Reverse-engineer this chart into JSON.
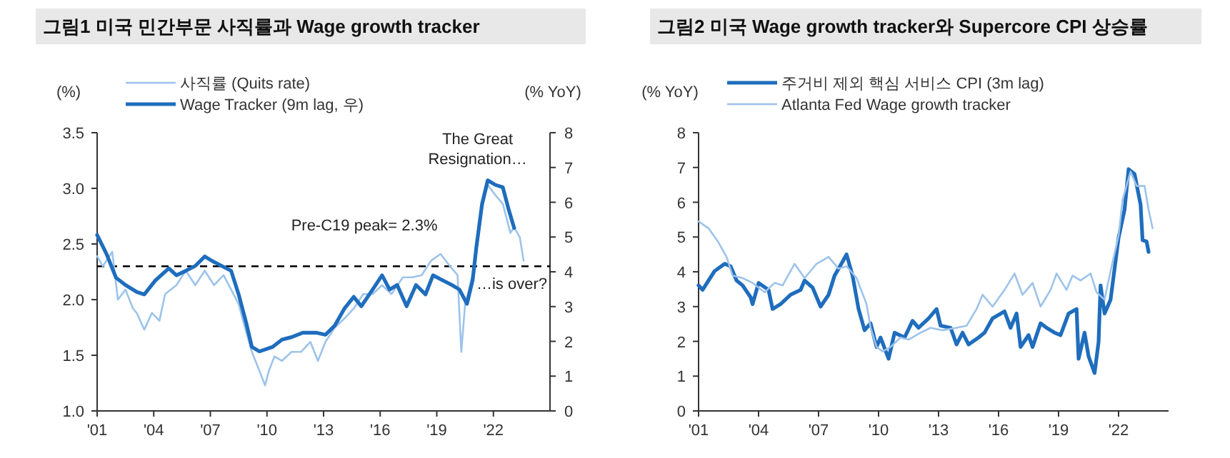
{
  "chart_data": [
    {
      "type": "line",
      "title": "그림1 미국 민간부문 사직률과 Wage growth tracker",
      "ylabel": "(%)",
      "y2label": "(% YoY)",
      "xlim": [
        2001,
        2025
      ],
      "xticks": [
        {
          "value": 2001,
          "label": "'01"
        },
        {
          "value": 2004,
          "label": "'04"
        },
        {
          "value": 2007,
          "label": "'07"
        },
        {
          "value": 2010,
          "label": "'10"
        },
        {
          "value": 2013,
          "label": "'13"
        },
        {
          "value": 2016,
          "label": "'16"
        },
        {
          "value": 2019,
          "label": "'19"
        },
        {
          "value": 2022,
          "label": "'22"
        }
      ],
      "ylim": [
        1,
        3.5
      ],
      "yticks": [
        {
          "value": 1,
          "label": "1.0"
        },
        {
          "value": 1.5,
          "label": "1.5"
        },
        {
          "value": 2,
          "label": "2.0"
        },
        {
          "value": 2.5,
          "label": "2.5"
        },
        {
          "value": 3,
          "label": "3.0"
        },
        {
          "value": 3.5,
          "label": "3.5"
        }
      ],
      "y2lim": [
        0,
        8
      ],
      "y2ticks": [
        0,
        1,
        2,
        3,
        4,
        5,
        6,
        7,
        8
      ],
      "grid": false,
      "legend": "top",
      "line_style": "solid",
      "marker": "none",
      "series": [
        {
          "name": "사직률 (Quits rate)",
          "color": "#9dc3ea",
          "x": [
            2001.0,
            2001.3,
            2001.8,
            2002.1,
            2002.5,
            2002.9,
            2003.1,
            2003.5,
            2003.9,
            2004.3,
            2004.6,
            2005.2,
            2005.7,
            2006.2,
            2006.7,
            2007.2,
            2007.7,
            2008.1,
            2008.5,
            2008.7,
            2009.2,
            2009.6,
            2009.9,
            2010.1,
            2010.4,
            2010.8,
            2011.3,
            2011.8,
            2012.3,
            2012.7,
            2013.1,
            2013.6,
            2014.1,
            2014.6,
            2015.1,
            2015.6,
            2016.1,
            2016.6,
            2017.2,
            2017.7,
            2018.2,
            2018.7,
            2019.2,
            2019.7,
            2020.1,
            2020.3,
            2020.5,
            2020.7,
            2021.0,
            2021.4,
            2021.7,
            2022.1,
            2022.5,
            2022.9,
            2023.1,
            2023.4,
            2023.6
          ],
          "values": [
            2.39,
            2.3,
            2.43,
            2.0,
            2.09,
            1.92,
            1.88,
            1.73,
            1.88,
            1.81,
            2.05,
            2.13,
            2.26,
            2.13,
            2.26,
            2.13,
            2.22,
            2.09,
            1.96,
            1.83,
            1.53,
            1.36,
            1.23,
            1.36,
            1.49,
            1.45,
            1.53,
            1.53,
            1.62,
            1.45,
            1.62,
            1.75,
            1.83,
            1.92,
            2.05,
            2.05,
            2.13,
            2.05,
            2.2,
            2.2,
            2.22,
            2.35,
            2.41,
            2.3,
            2.22,
            1.53,
            1.96,
            2.09,
            2.3,
            2.82,
            3.03,
            2.94,
            2.86,
            2.6,
            2.65,
            2.56,
            2.35
          ]
        },
        {
          "name": "Wage Tracker (9m lag, 우)",
          "color": "#1f6dbd",
          "axis": "y2",
          "x": [
            2001.0,
            2001.5,
            2002.0,
            2002.5,
            2003.1,
            2003.5,
            2004.1,
            2004.8,
            2005.2,
            2005.7,
            2006.2,
            2006.7,
            2007.1,
            2007.6,
            2008.1,
            2008.5,
            2008.9,
            2009.2,
            2009.6,
            2010.3,
            2010.8,
            2011.3,
            2011.9,
            2012.6,
            2013.1,
            2013.6,
            2014.1,
            2014.6,
            2015.0,
            2015.6,
            2016.1,
            2016.5,
            2016.9,
            2017.4,
            2017.9,
            2018.4,
            2018.8,
            2019.3,
            2019.8,
            2020.2,
            2020.6,
            2020.9,
            2021.1,
            2021.4,
            2021.7,
            2022.1,
            2022.5,
            2022.8,
            2023.1
          ],
          "values": [
            5.06,
            4.51,
            3.83,
            3.62,
            3.42,
            3.35,
            3.76,
            4.1,
            3.9,
            4.03,
            4.17,
            4.44,
            4.31,
            4.17,
            4.03,
            3.35,
            2.53,
            1.84,
            1.71,
            1.84,
            2.05,
            2.12,
            2.25,
            2.25,
            2.19,
            2.46,
            2.94,
            3.28,
            3.01,
            3.49,
            3.9,
            3.49,
            3.62,
            3.01,
            3.62,
            3.35,
            3.9,
            3.76,
            3.62,
            3.49,
            3.08,
            3.76,
            4.72,
            5.95,
            6.63,
            6.5,
            6.43,
            5.81,
            5.26
          ]
        }
      ],
      "ref_lines": [
        {
          "axis": "y",
          "value": 2.3,
          "label": "Pre-C19 peak= 2.3%",
          "color": "#000000",
          "line_style": "dashed"
        }
      ],
      "annotations": [
        "The Great Resignation…",
        "…is over?"
      ]
    },
    {
      "type": "line",
      "title": "그림2 미국 Wage growth tracker와 Supercore CPI 상승률",
      "ylabel": "(% YoY)",
      "xlim": [
        2001,
        2024.5
      ],
      "xticks": [
        {
          "value": 2001,
          "label": "'01"
        },
        {
          "value": 2004,
          "label": "'04"
        },
        {
          "value": 2007,
          "label": "'07"
        },
        {
          "value": 2010,
          "label": "'10"
        },
        {
          "value": 2013,
          "label": "'13"
        },
        {
          "value": 2016,
          "label": "'16"
        },
        {
          "value": 2019,
          "label": "'19"
        },
        {
          "value": 2022,
          "label": "'22"
        }
      ],
      "ylim": [
        0,
        8
      ],
      "yticks": [
        0,
        1,
        2,
        3,
        4,
        5,
        6,
        7,
        8
      ],
      "grid": false,
      "legend": "top",
      "line_style": "solid",
      "marker": "none",
      "series": [
        {
          "name": "주거비 제외 핵심 서비스 CPI (3m lag)",
          "color": "#1f6dbd",
          "x": [
            2001.0,
            2001.2,
            2001.8,
            2002.3,
            2002.6,
            2002.9,
            2003.2,
            2003.6,
            2003.7,
            2004.0,
            2004.5,
            2004.7,
            2005.1,
            2005.6,
            2006.1,
            2006.3,
            2006.7,
            2007.1,
            2007.5,
            2007.8,
            2008.2,
            2008.4,
            2008.7,
            2009.0,
            2009.3,
            2009.6,
            2009.9,
            2010.1,
            2010.5,
            2010.8,
            2011.3,
            2011.7,
            2012.0,
            2012.5,
            2012.9,
            2013.1,
            2013.6,
            2013.9,
            2014.2,
            2014.5,
            2015.0,
            2015.3,
            2015.7,
            2016.3,
            2016.6,
            2016.9,
            2017.1,
            2017.5,
            2017.7,
            2018.1,
            2018.4,
            2018.8,
            2019.1,
            2019.5,
            2019.9,
            2020.0,
            2020.3,
            2020.5,
            2020.8,
            2021.0,
            2021.1,
            2021.3,
            2021.6,
            2022.0,
            2022.3,
            2022.5,
            2022.8,
            2023.1,
            2023.2,
            2023.4,
            2023.5
          ],
          "values": [
            3.61,
            3.48,
            4.02,
            4.23,
            4.16,
            3.75,
            3.61,
            3.27,
            3.07,
            3.68,
            3.48,
            2.93,
            3.07,
            3.34,
            3.48,
            3.75,
            3.55,
            3.0,
            3.34,
            3.89,
            4.29,
            4.5,
            3.89,
            2.93,
            2.32,
            2.52,
            1.84,
            2.11,
            1.5,
            2.25,
            2.11,
            2.59,
            2.39,
            2.66,
            2.93,
            2.45,
            2.39,
            1.91,
            2.25,
            1.91,
            2.11,
            2.25,
            2.66,
            2.86,
            2.39,
            2.8,
            1.84,
            2.18,
            1.84,
            2.52,
            2.39,
            2.25,
            2.18,
            2.8,
            2.93,
            1.5,
            2.25,
            1.57,
            1.09,
            1.98,
            3.61,
            2.8,
            3.2,
            4.98,
            5.79,
            6.95,
            6.81,
            5.93,
            4.91,
            4.87,
            4.57
          ]
        },
        {
          "name": "Atlanta Fed Wage growth tracker",
          "color": "#9dc3ea",
          "x": [
            2001.0,
            2001.5,
            2002.0,
            2002.4,
            2002.7,
            2003.2,
            2003.7,
            2004.3,
            2004.8,
            2005.2,
            2005.8,
            2006.3,
            2006.9,
            2007.5,
            2008.0,
            2008.4,
            2008.9,
            2009.4,
            2009.6,
            2009.9,
            2010.2,
            2010.6,
            2011.1,
            2011.5,
            2012.1,
            2012.6,
            2013.2,
            2013.9,
            2014.4,
            2014.9,
            2015.2,
            2015.7,
            2016.3,
            2016.8,
            2017.2,
            2017.7,
            2018.1,
            2018.6,
            2018.9,
            2019.4,
            2019.7,
            2020.1,
            2020.6,
            2020.9,
            2021.3,
            2021.6,
            2022.0,
            2022.2,
            2022.6,
            2022.9,
            2023.3,
            2023.5,
            2023.7
          ],
          "values": [
            5.45,
            5.25,
            4.84,
            4.43,
            3.89,
            3.82,
            3.68,
            3.41,
            3.68,
            3.61,
            4.23,
            3.82,
            4.23,
            4.43,
            4.09,
            4.16,
            3.82,
            3.07,
            2.39,
            1.84,
            1.71,
            1.84,
            2.11,
            2.05,
            2.25,
            2.39,
            2.32,
            2.39,
            2.45,
            2.93,
            3.34,
            3.0,
            3.48,
            3.95,
            3.34,
            3.68,
            3.0,
            3.48,
            3.95,
            3.48,
            3.89,
            3.75,
            3.95,
            3.41,
            3.2,
            4.02,
            5.04,
            6.07,
            6.88,
            6.47,
            6.47,
            5.79,
            5.25
          ]
        }
      ]
    }
  ]
}
